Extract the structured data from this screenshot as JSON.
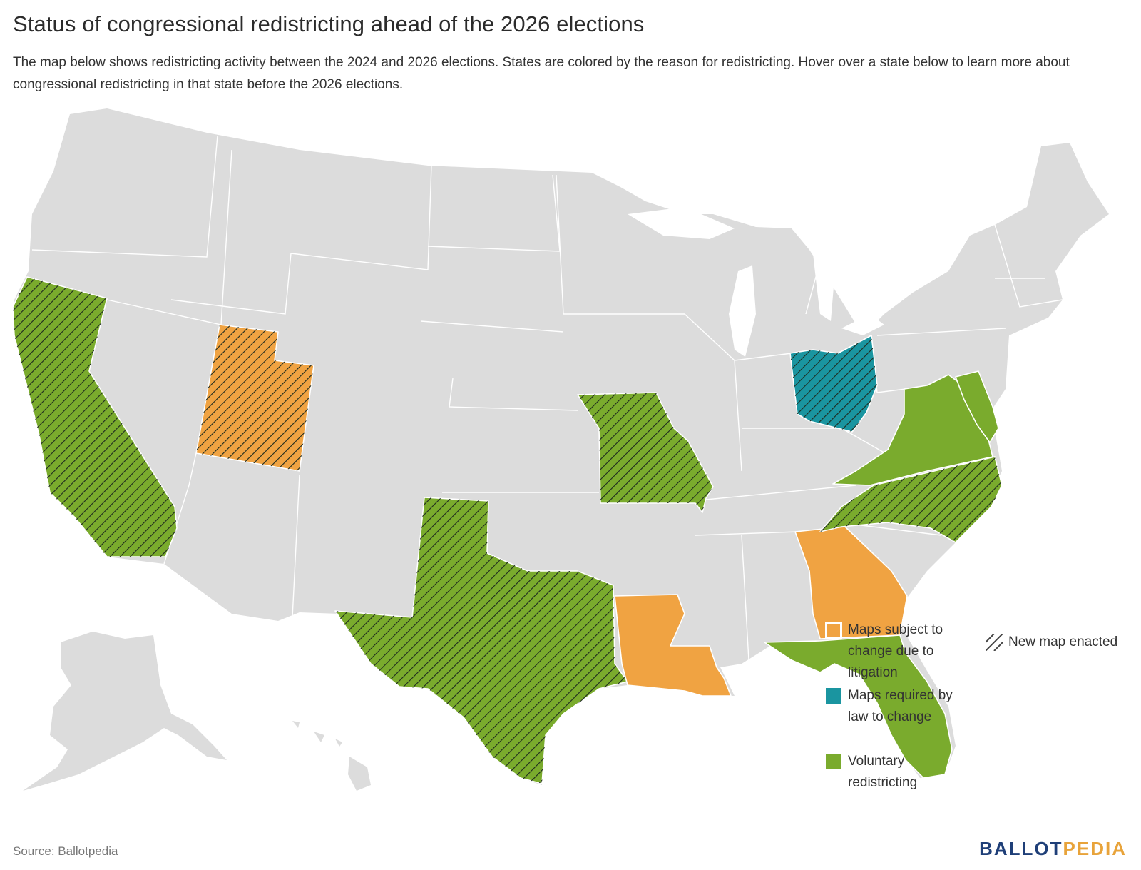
{
  "title": "Status of congressional redistricting ahead of the 2026 elections",
  "subtitle": "The map below shows redistricting activity between the 2024 and 2026 elections. States are colored by the reason for redistricting. Hover over a state below to learn more about congressional redistricting in that state before the 2026 elections.",
  "colors": {
    "neutral": "#dcdcdc",
    "litigation": "#f0a342",
    "required": "#1a95a0",
    "voluntary": "#7aab2d",
    "hatch": "#1e2a1e"
  },
  "legend": {
    "litigation": "Maps subject to change due to litigation",
    "required": "Maps required by law to change",
    "voluntary": "Voluntary redistricting",
    "new_map": "New map enacted"
  },
  "states": [
    {
      "name": "California",
      "category": "voluntary",
      "new_map": true
    },
    {
      "name": "Utah",
      "category": "litigation",
      "new_map": true
    },
    {
      "name": "Texas",
      "category": "voluntary",
      "new_map": true
    },
    {
      "name": "Missouri",
      "category": "voluntary",
      "new_map": true
    },
    {
      "name": "Louisiana",
      "category": "litigation",
      "new_map": false
    },
    {
      "name": "Georgia",
      "category": "litigation",
      "new_map": false
    },
    {
      "name": "Ohio",
      "category": "required",
      "new_map": true
    },
    {
      "name": "North Carolina",
      "category": "voluntary",
      "new_map": true
    },
    {
      "name": "Virginia",
      "category": "voluntary",
      "new_map": false
    },
    {
      "name": "Florida",
      "category": "voluntary",
      "new_map": false
    },
    {
      "name": "Maryland",
      "category": "voluntary",
      "new_map": false
    }
  ],
  "source": "Source: Ballotpedia",
  "logo": {
    "part1": "BALLOT",
    "part2": "PEDIA"
  }
}
